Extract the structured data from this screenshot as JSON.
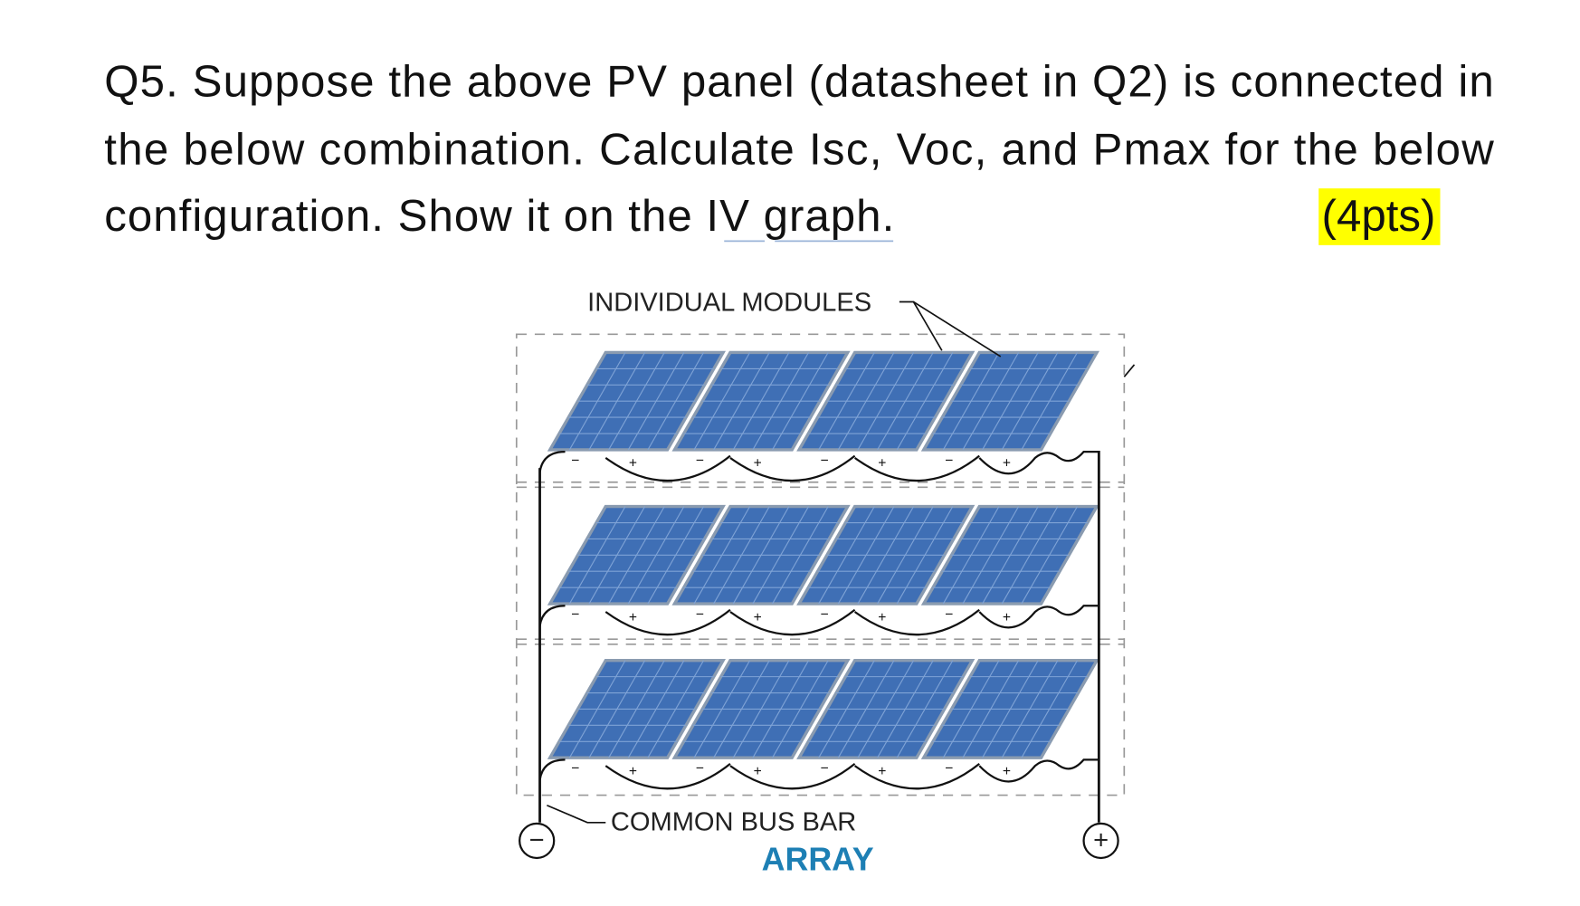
{
  "question": {
    "lines": [
      "Q5. Suppose the above PV panel (datasheet in Q2) is connected in",
      "the below combination. Calculate Isc, Voc, and Pmax for the below",
      "configuration. Show it on the IV graph."
    ],
    "points": "(4pts)"
  },
  "diagram": {
    "modules_label": "INDIVIDUAL MODULES",
    "bus_label": "COMMON BUS BAR",
    "array_label": "ARRAY",
    "negative": "−",
    "positive": "+",
    "terminal_minus": "−",
    "terminal_plus": "+"
  }
}
